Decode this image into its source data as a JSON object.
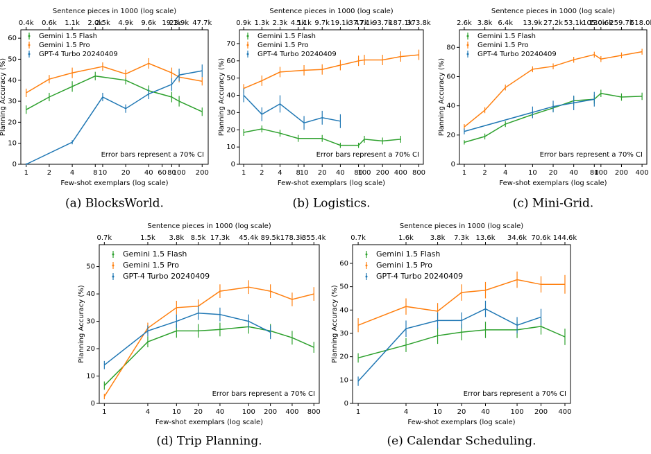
{
  "chart_data": [
    {
      "type": "line",
      "caption": "(a) BlocksWorld.",
      "xlabel": "Few-shot exemplars (log scale)",
      "x2label": "Sentence pieces in 1000 (log scale)",
      "ylabel": "Planning Accuracy (%)",
      "annotation": "Error bars represent a 70% CI",
      "log_x": true,
      "xlim": [
        0.85,
        240
      ],
      "ylim": [
        0,
        64
      ],
      "xticks": [
        1,
        2,
        4,
        8,
        10,
        20,
        40,
        60,
        80,
        100,
        200
      ],
      "yticks": [
        0,
        10,
        20,
        30,
        40,
        50,
        60
      ],
      "x2ticks": [
        {
          "value": 1,
          "label": "0.4k"
        },
        {
          "value": 2,
          "label": "0.6k"
        },
        {
          "value": 4,
          "label": "1.1k"
        },
        {
          "value": 8,
          "label": "2.0k"
        },
        {
          "value": 10,
          "label": "2.5k"
        },
        {
          "value": 20,
          "label": "4.9k"
        },
        {
          "value": 40,
          "label": "9.6k"
        },
        {
          "value": 80,
          "label": "19.1k"
        },
        {
          "value": 100,
          "label": "23.9k"
        },
        {
          "value": 200,
          "label": "47.7k"
        }
      ],
      "series": [
        {
          "name": "Gemini 1.5 Flash",
          "color": "#2ca02c",
          "x": [
            1,
            2,
            4,
            8,
            20,
            40,
            80,
            100,
            200
          ],
          "values": [
            26,
            32,
            37,
            42,
            40,
            35,
            32,
            30,
            25
          ],
          "errors": [
            2,
            2,
            2.5,
            2,
            2,
            2.5,
            2.5,
            2.5,
            2
          ]
        },
        {
          "name": "Gemini 1.5 Pro",
          "color": "#ff7f0e",
          "x": [
            1,
            2,
            4,
            10,
            20,
            40,
            80,
            100,
            200
          ],
          "values": [
            34,
            40.5,
            43.5,
            46.5,
            43,
            48,
            43.5,
            41.5,
            39.5
          ],
          "errors": [
            2,
            2,
            2.5,
            2,
            2,
            2.5,
            2.5,
            2.5,
            2
          ]
        },
        {
          "name": "GPT-4 Turbo 20240409",
          "color": "#1f77b4",
          "x": [
            1,
            4,
            10,
            20,
            40,
            80,
            100,
            200
          ],
          "values": [
            0,
            10.5,
            32,
            26.5,
            33.5,
            38,
            42.5,
            44.5
          ],
          "errors": [
            0.5,
            1,
            2,
            2,
            2.5,
            3,
            3,
            3
          ]
        }
      ]
    },
    {
      "type": "line",
      "caption": "(b) Logistics.",
      "xlabel": "Few-shot exemplars (log scale)",
      "x2label": "Sentence pieces in 1000 (log scale)",
      "ylabel": "Planning Accuracy (%)",
      "annotation": "Error bars represent a 70% CI",
      "log_x": true,
      "xlim": [
        0.85,
        950
      ],
      "ylim": [
        0,
        78
      ],
      "xticks": [
        1,
        2,
        4,
        8,
        10,
        20,
        40,
        80,
        100,
        200,
        400,
        800
      ],
      "yticks": [
        0,
        10,
        20,
        30,
        40,
        50,
        60,
        70
      ],
      "x2ticks": [
        {
          "value": 1,
          "label": "0.9k"
        },
        {
          "value": 2,
          "label": "1.3k"
        },
        {
          "value": 4,
          "label": "2.3k"
        },
        {
          "value": 8,
          "label": "4.1k"
        },
        {
          "value": 10,
          "label": "5.1k"
        },
        {
          "value": 20,
          "label": "9.7k"
        },
        {
          "value": 40,
          "label": "19.1k"
        },
        {
          "value": 80,
          "label": "37.7k"
        },
        {
          "value": 100,
          "label": "47.1k"
        },
        {
          "value": 200,
          "label": "93.7k"
        },
        {
          "value": 400,
          "label": "187.1k"
        },
        {
          "value": 800,
          "label": "373.8k"
        }
      ],
      "series": [
        {
          "name": "Gemini 1.5 Flash",
          "color": "#2ca02c",
          "x": [
            1,
            2,
            4,
            8,
            20,
            40,
            80,
            100,
            200,
            400
          ],
          "values": [
            18.5,
            20.5,
            18,
            15,
            15,
            11,
            11,
            14.5,
            13.5,
            14.5
          ],
          "errors": [
            2,
            2,
            2,
            2,
            2,
            1.5,
            1.5,
            2,
            2,
            2
          ]
        },
        {
          "name": "Gemini 1.5 Pro",
          "color": "#ff7f0e",
          "x": [
            1,
            2,
            4,
            10,
            20,
            40,
            80,
            100,
            200,
            400,
            800
          ],
          "values": [
            44,
            48.5,
            53.5,
            54.5,
            55,
            57.5,
            60,
            60.5,
            60.5,
            62.5,
            63.5
          ],
          "errors": [
            2.5,
            3,
            3,
            3,
            3,
            3,
            3,
            3,
            3,
            3,
            3
          ]
        },
        {
          "name": "GPT-4 Turbo 20240409",
          "color": "#1f77b4",
          "x": [
            1,
            2,
            4,
            10,
            20,
            40
          ],
          "values": [
            40,
            29,
            35,
            24,
            27,
            25
          ],
          "errors": [
            4,
            4,
            5,
            4,
            4,
            4
          ]
        }
      ]
    },
    {
      "type": "line",
      "caption": "(c) Mini-Grid.",
      "xlabel": "Few-shot exemplars (log scale)",
      "x2label": "Sentence pieces in 1000 (log scale)",
      "ylabel": "Planning Accuracy (%)",
      "annotation": "Error bars represent a 70% CI",
      "log_x": true,
      "xlim": [
        0.85,
        470
      ],
      "ylim": [
        0,
        92
      ],
      "xticks": [
        1,
        2,
        4,
        10,
        20,
        40,
        80,
        100,
        200,
        400
      ],
      "yticks": [
        0,
        20,
        40,
        60,
        80
      ],
      "x2ticks": [
        {
          "value": 1,
          "label": "2.6k"
        },
        {
          "value": 2,
          "label": "3.8k"
        },
        {
          "value": 4,
          "label": "6.4k"
        },
        {
          "value": 10,
          "label": "13.9k"
        },
        {
          "value": 20,
          "label": "27.2k"
        },
        {
          "value": 40,
          "label": "53.1k"
        },
        {
          "value": 80,
          "label": "105.0k"
        },
        {
          "value": 100,
          "label": "130.6k"
        },
        {
          "value": 200,
          "label": "259.7k"
        },
        {
          "value": 400,
          "label": "518.0k"
        }
      ],
      "series": [
        {
          "name": "Gemini 1.5 Flash",
          "color": "#2ca02c",
          "x": [
            1,
            2,
            4,
            10,
            20,
            40,
            80,
            100,
            200,
            400
          ],
          "values": [
            15,
            19,
            27.5,
            34,
            38.5,
            43.5,
            44.5,
            48.5,
            46,
            46.5
          ],
          "errors": [
            1.5,
            2,
            2,
            2,
            2.5,
            3,
            3,
            2.5,
            2.5,
            2.5
          ]
        },
        {
          "name": "Gemini 1.5 Pro",
          "color": "#ff7f0e",
          "x": [
            1,
            2,
            4,
            10,
            20,
            40,
            80,
            100,
            200,
            400
          ],
          "values": [
            25.5,
            37,
            52.5,
            65,
            67,
            71.5,
            75,
            72,
            74.5,
            77
          ],
          "errors": [
            2,
            2,
            2,
            2,
            2,
            2,
            2,
            2,
            2,
            2
          ]
        },
        {
          "name": "GPT-4 Turbo 20240409",
          "color": "#1f77b4",
          "x": [
            1,
            10,
            20,
            40,
            80
          ],
          "values": [
            22.5,
            35.5,
            39.5,
            42,
            44.5
          ],
          "errors": [
            2,
            4,
            4,
            5,
            5
          ]
        }
      ]
    },
    {
      "type": "line",
      "caption": "(d) Trip Planning.",
      "xlabel": "Few-shot exemplars (log scale)",
      "x2label": "Sentence pieces in 1000 (log scale)",
      "ylabel": "Planning Accuracy (%)",
      "annotation": "Error bars represent a 70% CI",
      "log_x": true,
      "xlim": [
        0.85,
        950
      ],
      "ylim": [
        0,
        58
      ],
      "xticks": [
        1,
        4,
        10,
        20,
        40,
        100,
        200,
        400,
        800
      ],
      "yticks": [
        0,
        10,
        20,
        30,
        40,
        50
      ],
      "x2ticks": [
        {
          "value": 1,
          "label": "0.7k"
        },
        {
          "value": 4,
          "label": "1.5k"
        },
        {
          "value": 10,
          "label": "3.8k"
        },
        {
          "value": 20,
          "label": "8.5k"
        },
        {
          "value": 40,
          "label": "17.3k"
        },
        {
          "value": 100,
          "label": "45.4k"
        },
        {
          "value": 200,
          "label": "89.5k"
        },
        {
          "value": 400,
          "label": "178.3k"
        },
        {
          "value": 800,
          "label": "355.4k"
        }
      ],
      "series": [
        {
          "name": "Gemini 1.5 Flash",
          "color": "#2ca02c",
          "x": [
            1,
            4,
            10,
            20,
            40,
            100,
            200,
            400,
            800
          ],
          "values": [
            6.5,
            22.5,
            26.5,
            26.5,
            27,
            28,
            26.5,
            24,
            20.5
          ],
          "errors": [
            1.5,
            2,
            2.5,
            2.5,
            2.5,
            2.5,
            2.5,
            2.5,
            2
          ]
        },
        {
          "name": "Gemini 1.5 Pro",
          "color": "#ff7f0e",
          "x": [
            1,
            4,
            10,
            20,
            40,
            100,
            200,
            400,
            800
          ],
          "values": [
            2.5,
            27.5,
            35,
            35.5,
            41,
            42.5,
            41,
            38,
            40
          ],
          "errors": [
            1,
            2,
            2.5,
            2.5,
            2.5,
            2.5,
            2.5,
            2.5,
            2.5
          ]
        },
        {
          "name": "GPT-4 Turbo 20240409",
          "color": "#1f77b4",
          "x": [
            1,
            4,
            10,
            20,
            40,
            100,
            200
          ],
          "values": [
            14,
            26.5,
            30,
            33,
            32.5,
            30,
            26
          ],
          "errors": [
            1.5,
            2,
            2.5,
            2.5,
            2.5,
            2.5,
            2.5
          ]
        }
      ]
    },
    {
      "type": "line",
      "caption": "(e) Calendar Scheduling.",
      "xlabel": "Few-shot exemplars (log scale)",
      "x2label": "Sentence pieces in 1000 (log scale)",
      "ylabel": "Planning Accuracy (%)",
      "annotation": "Error bars represent a 70% CI",
      "log_x": true,
      "xlim": [
        0.85,
        470
      ],
      "ylim": [
        0,
        68
      ],
      "xticks": [
        1,
        4,
        10,
        20,
        40,
        100,
        200,
        400
      ],
      "yticks": [
        0,
        10,
        20,
        30,
        40,
        50,
        60
      ],
      "x2ticks": [
        {
          "value": 1,
          "label": "0.7k"
        },
        {
          "value": 4,
          "label": "1.6k"
        },
        {
          "value": 10,
          "label": "3.8k"
        },
        {
          "value": 20,
          "label": "7.3k"
        },
        {
          "value": 40,
          "label": "13.6k"
        },
        {
          "value": 100,
          "label": "34.6k"
        },
        {
          "value": 200,
          "label": "70.6k"
        },
        {
          "value": 400,
          "label": "144.6k"
        }
      ],
      "series": [
        {
          "name": "Gemini 1.5 Flash",
          "color": "#2ca02c",
          "x": [
            1,
            4,
            10,
            20,
            40,
            100,
            200,
            400
          ],
          "values": [
            19.5,
            25,
            29,
            30.5,
            31.5,
            31.5,
            33,
            28.5
          ],
          "errors": [
            2,
            3,
            3.5,
            3.5,
            3.5,
            3.5,
            3.5,
            3.5
          ]
        },
        {
          "name": "Gemini 1.5 Pro",
          "color": "#ff7f0e",
          "x": [
            1,
            4,
            10,
            20,
            40,
            100,
            200,
            400
          ],
          "values": [
            33.5,
            41.5,
            39.5,
            47.5,
            48.5,
            53,
            51,
            51
          ],
          "errors": [
            3,
            3.5,
            3.5,
            3.5,
            3.5,
            3.5,
            3.5,
            4
          ]
        },
        {
          "name": "GPT-4 Turbo 20240409",
          "color": "#1f77b4",
          "x": [
            1,
            4,
            10,
            20,
            40,
            100,
            200
          ],
          "values": [
            9.5,
            32,
            35.5,
            35.5,
            40.5,
            33.5,
            37
          ],
          "errors": [
            2,
            3.5,
            3.5,
            3.5,
            3.5,
            3.5,
            3.5
          ]
        }
      ]
    }
  ]
}
